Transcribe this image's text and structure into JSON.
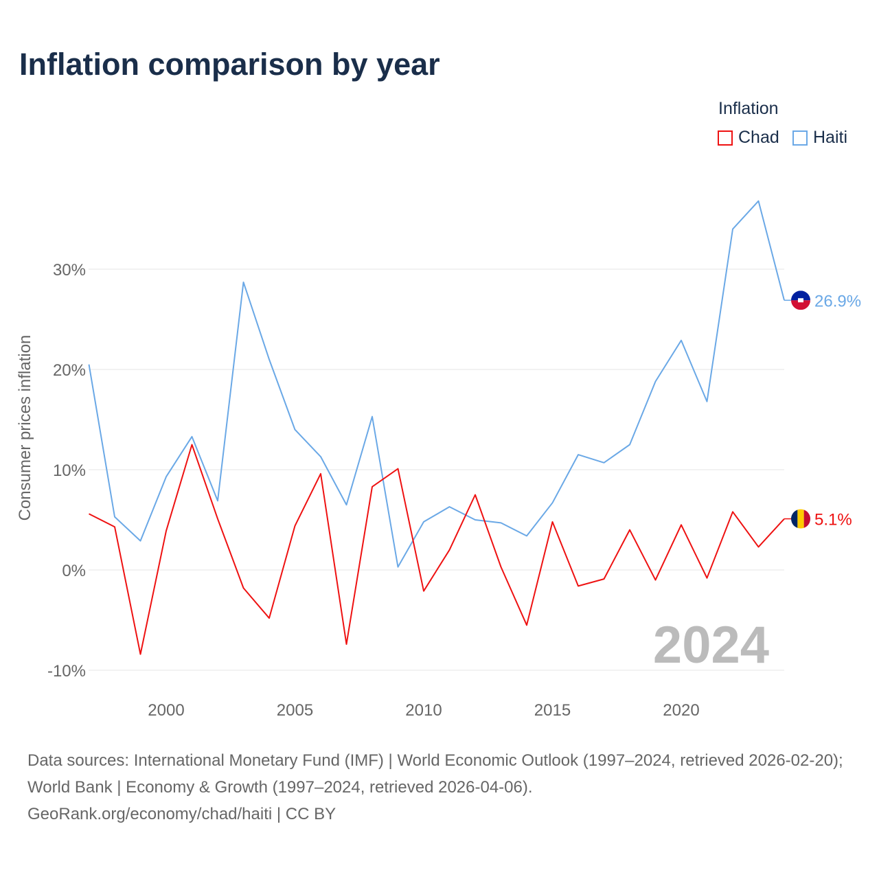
{
  "title": "Inflation comparison by year",
  "legend": {
    "title": "Inflation",
    "items": [
      {
        "name": "Chad",
        "color": "#ee1111"
      },
      {
        "name": "Haiti",
        "color": "#6aa8e6"
      }
    ]
  },
  "source": {
    "line1": "Data sources: International Monetary Fund (IMF) | World Economic Outlook (1997–2024, retrieved 2026-02-20); World Bank | Economy & Growth (1997–2024, retrieved 2026-04-06).",
    "line2": "GeoRank.org/economy/chad/haiti | CC BY"
  },
  "chart_data": {
    "type": "line",
    "title": "Inflation comparison by year",
    "xlabel": "",
    "ylabel": "Consumer prices inflation",
    "year_watermark": "2024",
    "xlim": [
      1997,
      2024
    ],
    "ylim": [
      -10,
      38
    ],
    "xticks": [
      2000,
      2005,
      2010,
      2015,
      2020
    ],
    "yticks": [
      {
        "v": -10,
        "label": "-10%"
      },
      {
        "v": 0,
        "label": "0%"
      },
      {
        "v": 10,
        "label": "10%"
      },
      {
        "v": 20,
        "label": "20%"
      },
      {
        "v": 30,
        "label": "30%"
      }
    ],
    "x": [
      1997,
      1998,
      1999,
      2000,
      2001,
      2002,
      2003,
      2004,
      2005,
      2006,
      2007,
      2008,
      2009,
      2010,
      2011,
      2012,
      2013,
      2014,
      2015,
      2016,
      2017,
      2018,
      2019,
      2020,
      2021,
      2022,
      2023,
      2024
    ],
    "series": [
      {
        "name": "Chad",
        "color": "#ee1111",
        "end_label": "5.1%",
        "values": [
          5.6,
          4.3,
          -8.4,
          3.9,
          12.5,
          5.1,
          -1.8,
          -4.8,
          4.4,
          9.6,
          -7.4,
          8.3,
          10.1,
          -2.1,
          2.0,
          7.5,
          0.3,
          -5.5,
          4.8,
          -1.6,
          -0.9,
          4.0,
          -1.0,
          4.5,
          -0.8,
          5.8,
          2.3,
          5.1
        ]
      },
      {
        "name": "Haiti",
        "color": "#6aa8e6",
        "end_label": "26.9%",
        "values": [
          20.5,
          5.3,
          2.9,
          9.3,
          13.3,
          6.9,
          28.7,
          21.0,
          14.0,
          11.3,
          6.5,
          15.3,
          0.3,
          4.8,
          6.3,
          5.0,
          4.7,
          3.4,
          6.7,
          11.5,
          10.7,
          12.5,
          18.8,
          22.9,
          16.8,
          34.0,
          36.8,
          26.9
        ]
      }
    ]
  }
}
